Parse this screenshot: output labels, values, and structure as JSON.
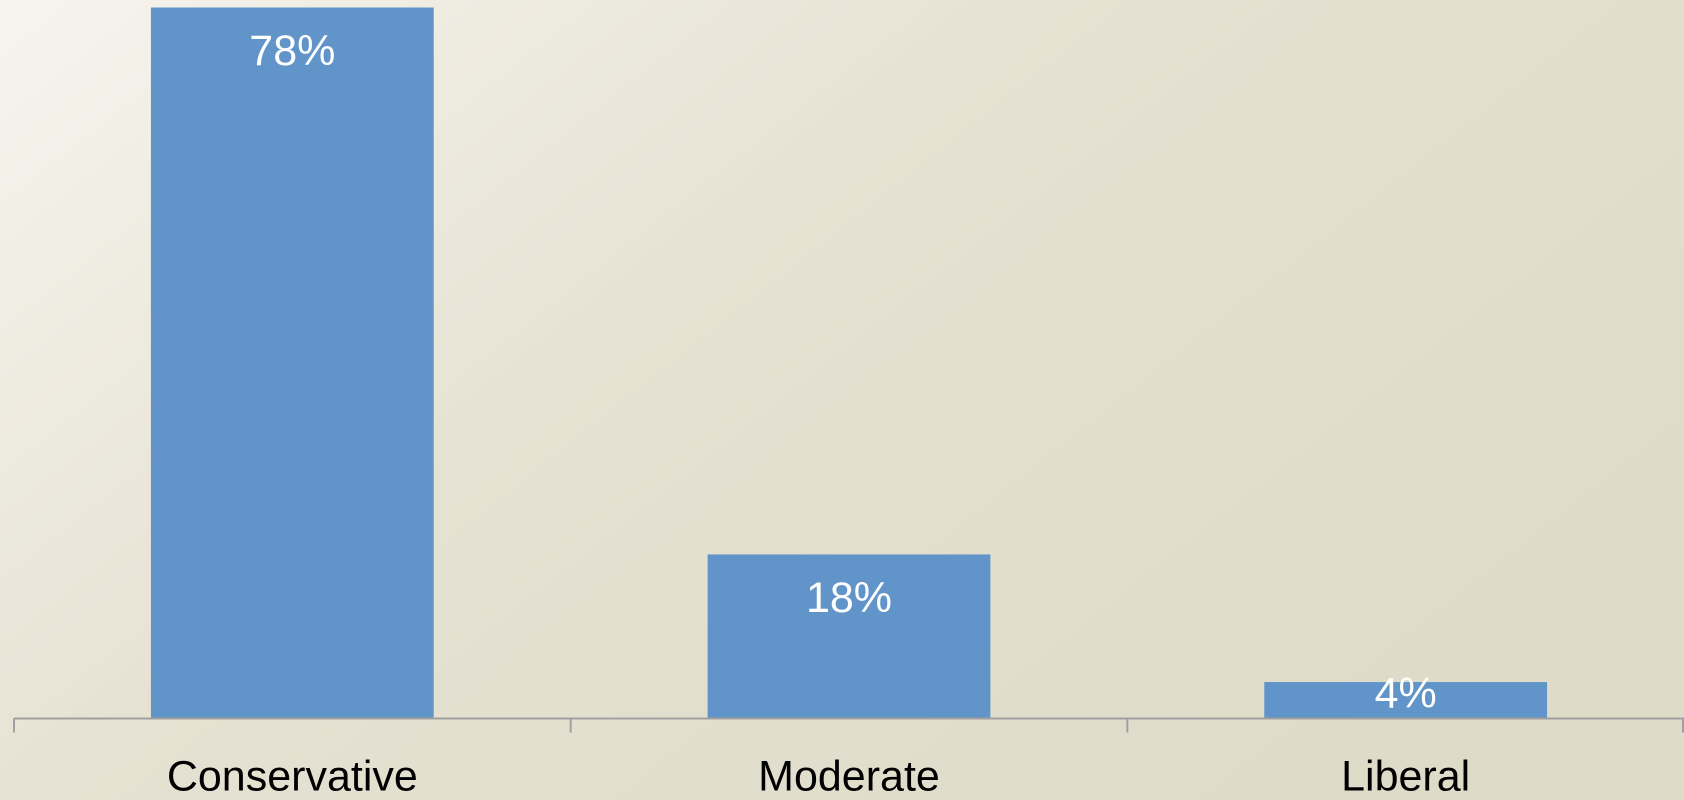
{
  "chart_data": {
    "type": "bar",
    "categories": [
      "Conservative",
      "Moderate",
      "Liberal"
    ],
    "values": [
      78,
      18,
      4
    ],
    "value_labels": [
      "78%",
      "18%",
      "4%"
    ],
    "color": "#6195c9"
  }
}
